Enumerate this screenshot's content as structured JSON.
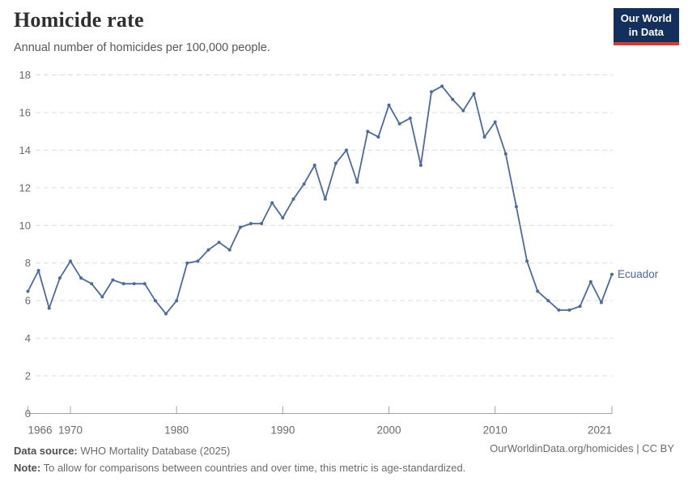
{
  "header": {
    "title": "Homicide rate",
    "subtitle": "Annual number of homicides per 100,000 people.",
    "logo": {
      "line1": "Our World",
      "line2": "in Data"
    }
  },
  "chart_data": {
    "type": "line",
    "title": "Homicide rate",
    "subtitle": "Annual number of homicides per 100,000 people.",
    "entity_label": "Ecuador",
    "xlim": [
      1966,
      2021
    ],
    "ylim": [
      0,
      18
    ],
    "x_ticks": [
      1966,
      1970,
      1980,
      1990,
      2000,
      2010,
      2021
    ],
    "y_ticks": [
      0,
      2,
      4,
      6,
      8,
      10,
      12,
      14,
      16,
      18
    ],
    "grid": "horizontal-dashed",
    "legend_position": "end-of-line-label",
    "series": [
      {
        "name": "Ecuador",
        "color": "#4C6A9C",
        "x": [
          1966,
          1967,
          1968,
          1969,
          1970,
          1971,
          1972,
          1973,
          1974,
          1975,
          1976,
          1977,
          1978,
          1979,
          1980,
          1981,
          1982,
          1983,
          1984,
          1985,
          1986,
          1987,
          1988,
          1989,
          1990,
          1991,
          1992,
          1993,
          1994,
          1995,
          1996,
          1997,
          1998,
          1999,
          2000,
          2001,
          2002,
          2003,
          2004,
          2005,
          2006,
          2007,
          2008,
          2009,
          2010,
          2011,
          2012,
          2013,
          2014,
          2015,
          2016,
          2017,
          2018,
          2019,
          2020,
          2021
        ],
        "values": [
          6.5,
          7.6,
          5.6,
          7.2,
          8.1,
          7.2,
          6.9,
          6.2,
          7.1,
          6.9,
          6.9,
          6.9,
          6.0,
          5.3,
          6.0,
          8.0,
          8.1,
          8.7,
          9.1,
          8.7,
          9.9,
          10.1,
          10.1,
          11.2,
          10.4,
          11.4,
          12.2,
          13.2,
          11.4,
          13.3,
          14.0,
          12.3,
          15.0,
          14.7,
          16.4,
          15.4,
          15.7,
          13.2,
          17.1,
          17.4,
          16.7,
          16.1,
          17.0,
          14.7,
          15.5,
          13.8,
          11.0,
          8.1,
          6.5,
          6.0,
          5.5,
          5.5,
          5.7,
          7.0,
          5.9,
          7.4
        ]
      }
    ]
  },
  "colors": {
    "line": "#4C6A9C",
    "grid": "#DCDCDC",
    "axis": "#A3A3A3",
    "tick_label": "#6B6B6B",
    "logo_bg": "#12305B",
    "logo_accent": "#D93A2B"
  },
  "footer": {
    "data_source_label": "Data source:",
    "data_source_value": "WHO Mortality Database (2025)",
    "note_label": "Note:",
    "note_value": "To allow for comparisons between countries and over time, this metric is age-standardized.",
    "attribution": "OurWorldinData.org/homicides | CC BY"
  }
}
